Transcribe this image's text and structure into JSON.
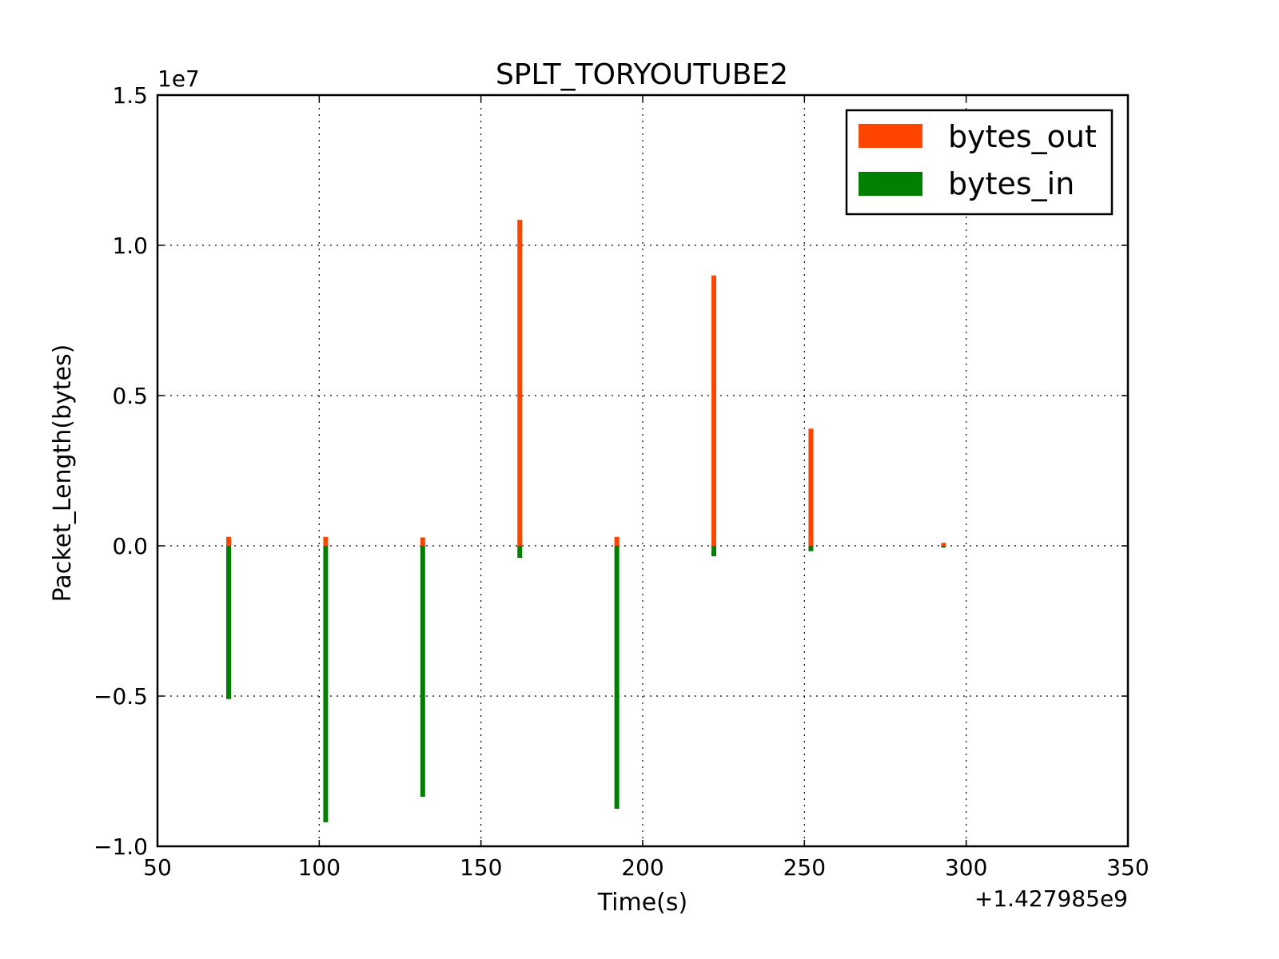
{
  "chart_data": {
    "type": "bar",
    "title": "SPLT_TORYOUTUBE2",
    "xlabel": "Time(s)",
    "ylabel": "Packet_Length(bytes)",
    "x_offset_text": "+1.427985e9",
    "y_scale_text": "1e7",
    "xlim": [
      50,
      350
    ],
    "ylim": [
      -1.0,
      1.5
    ],
    "x_ticks": [
      50,
      100,
      150,
      200,
      250,
      300,
      350
    ],
    "x_tick_labels": [
      "50",
      "100",
      "150",
      "200",
      "250",
      "300",
      "350"
    ],
    "y_ticks": [
      -1.0,
      -0.5,
      0.0,
      0.5,
      1.0,
      1.5
    ],
    "y_tick_labels": [
      "−1.0",
      "−0.5",
      "0.0",
      "0.5",
      "1.0",
      "1.5"
    ],
    "grid": true,
    "legend_position": "top-right",
    "series": [
      {
        "name": "bytes_out",
        "color": "#ff4500",
        "x": [
          72,
          102,
          132,
          162,
          192,
          222,
          252,
          293
        ],
        "values": [
          0.03,
          0.03,
          0.028,
          1.085,
          0.03,
          0.9,
          0.39,
          0.01
        ]
      },
      {
        "name": "bytes_in",
        "color": "#008000",
        "x": [
          72,
          102,
          132,
          162,
          192,
          222,
          252,
          293
        ],
        "values": [
          -0.51,
          -0.92,
          -0.835,
          -0.04,
          -0.875,
          -0.035,
          -0.018,
          -0.005
        ]
      }
    ]
  }
}
